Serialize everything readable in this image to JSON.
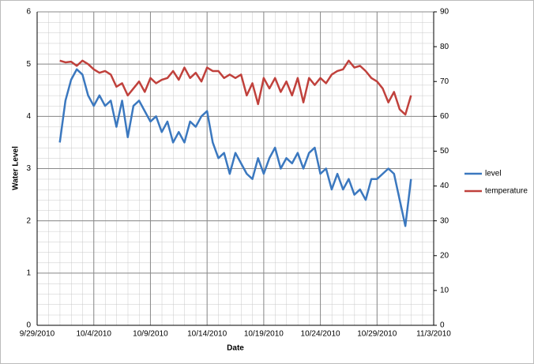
{
  "chart_data": {
    "type": "line",
    "x_label": "Date",
    "y_label": "Water Level",
    "xlim": [
      40450,
      40485
    ],
    "xticks": [
      {
        "value": 40450,
        "label": "9/29/2010"
      },
      {
        "value": 40455,
        "label": "10/4/2010"
      },
      {
        "value": 40460,
        "label": "10/9/2010"
      },
      {
        "value": 40465,
        "label": "10/14/2010"
      },
      {
        "value": 40470,
        "label": "10/19/2010"
      },
      {
        "value": 40475,
        "label": "10/24/2010"
      },
      {
        "value": 40480,
        "label": "10/29/2010"
      },
      {
        "value": 40485,
        "label": "11/3/2010"
      }
    ],
    "ylim": [
      0,
      6
    ],
    "yticks": [
      0,
      1,
      2,
      3,
      4,
      5,
      6
    ],
    "y2lim": [
      0,
      90
    ],
    "y2ticks": [
      0,
      10,
      20,
      30,
      40,
      50,
      60,
      70,
      80,
      90
    ],
    "grid": true,
    "legend": "right",
    "x": [
      40452,
      40452.5,
      40453,
      40453.5,
      40454,
      40454.5,
      40455,
      40455.5,
      40456,
      40456.5,
      40457,
      40457.5,
      40458,
      40458.5,
      40459,
      40459.5,
      40460,
      40460.5,
      40461,
      40461.5,
      40462,
      40462.5,
      40463,
      40463.5,
      40464,
      40464.5,
      40465,
      40465.5,
      40466,
      40466.5,
      40467,
      40467.5,
      40468,
      40468.5,
      40469,
      40469.5,
      40470,
      40470.5,
      40471,
      40471.5,
      40472,
      40472.5,
      40473,
      40473.5,
      40474,
      40474.5,
      40475,
      40475.5,
      40476,
      40476.5,
      40477,
      40477.5,
      40478,
      40478.5,
      40479,
      40479.5,
      40480,
      40480.5,
      40481,
      40481.5,
      40482,
      40482.5,
      40483
    ],
    "series": [
      {
        "name": "level",
        "color": "#3b78bf",
        "values": [
          3.5,
          4.3,
          4.7,
          4.9,
          4.8,
          4.4,
          4.2,
          4.4,
          4.2,
          4.3,
          3.8,
          4.3,
          3.6,
          4.2,
          4.3,
          4.1,
          3.9,
          4.0,
          3.7,
          3.9,
          3.5,
          3.7,
          3.5,
          3.9,
          3.8,
          4.0,
          4.1,
          3.5,
          3.2,
          3.3,
          2.9,
          3.3,
          3.1,
          2.9,
          2.8,
          3.2,
          2.9,
          3.2,
          3.4,
          3.0,
          3.2,
          3.1,
          3.3,
          3.0,
          3.3,
          3.4,
          2.9,
          3.0,
          2.6,
          2.9,
          2.6,
          2.8,
          2.5,
          2.6,
          2.4,
          2.8,
          2.8,
          2.9,
          3.0,
          2.9,
          2.4,
          1.9,
          2.8
        ]
      },
      {
        "name": "temperature",
        "color": "#c0413c",
        "axis": "y2",
        "values": [
          76,
          75.5,
          75.7,
          74.5,
          76,
          75,
          73.5,
          72.5,
          73,
          72,
          68.5,
          69.5,
          66,
          68,
          70,
          67,
          71,
          69.5,
          70.5,
          71,
          73,
          70.5,
          74,
          71,
          72.5,
          70,
          74,
          73,
          73,
          71,
          72,
          71,
          72,
          66,
          69.5,
          63.5,
          71,
          68,
          71,
          67,
          70,
          66,
          71,
          64,
          71,
          69,
          71,
          69.5,
          72,
          73,
          73.5,
          76,
          74,
          74.5,
          73,
          71,
          70,
          68,
          64,
          67,
          62,
          60.5,
          66
        ]
      }
    ]
  }
}
